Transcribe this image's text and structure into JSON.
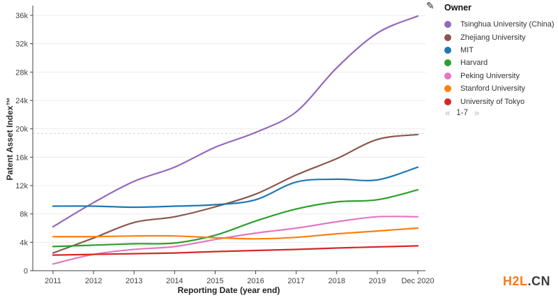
{
  "chart_data": {
    "type": "line",
    "title": "",
    "xlabel": "Reporting Date (year end)",
    "ylabel": "Patent Asset Index™",
    "categories": [
      "2011",
      "2012",
      "2013",
      "2014",
      "2015",
      "2016",
      "2017",
      "2018",
      "2019",
      "Dec 2020"
    ],
    "y_ticks": [
      {
        "value": 0,
        "label": "0"
      },
      {
        "value": 4000,
        "label": "4k"
      },
      {
        "value": 8000,
        "label": "8k"
      },
      {
        "value": 12000,
        "label": "12k"
      },
      {
        "value": 16000,
        "label": "16k"
      },
      {
        "value": 20000,
        "label": "20k"
      },
      {
        "value": 24000,
        "label": "24k"
      },
      {
        "value": 28000,
        "label": "28k"
      },
      {
        "value": 32000,
        "label": "32k"
      },
      {
        "value": 36000,
        "label": "36k"
      }
    ],
    "ylim": [
      0,
      36000
    ],
    "grid": "horizontal",
    "legend_position": "right",
    "reference_line": {
      "value": 19350,
      "style": "dashed"
    },
    "series": [
      {
        "name": "Tsinghua University (China)",
        "color": "#9467bd",
        "values": [
          6200,
          9600,
          12600,
          14600,
          17400,
          19500,
          22400,
          28600,
          33500,
          35900
        ]
      },
      {
        "name": "Zhejiang University",
        "color": "#8c564b",
        "values": [
          2500,
          4600,
          6800,
          7600,
          9000,
          10800,
          13500,
          15800,
          18500,
          19200
        ]
      },
      {
        "name": "MIT",
        "color": "#1f77b4",
        "values": [
          9100,
          9100,
          8950,
          9100,
          9300,
          10000,
          12500,
          12900,
          12800,
          14600
        ]
      },
      {
        "name": "Harvard",
        "color": "#2ca02c",
        "values": [
          3400,
          3600,
          3800,
          3900,
          5000,
          7000,
          8700,
          9700,
          10000,
          11400
        ]
      },
      {
        "name": "Peking University",
        "color": "#e377c2",
        "values": [
          950,
          2300,
          3000,
          3400,
          4400,
          5300,
          6000,
          6900,
          7600,
          7600
        ]
      },
      {
        "name": "Stanford University",
        "color": "#ff7f0e",
        "values": [
          4800,
          4800,
          4900,
          4900,
          4650,
          4500,
          4700,
          5200,
          5600,
          6000
        ]
      },
      {
        "name": "University of Tokyo",
        "color": "#d62728",
        "values": [
          2200,
          2300,
          2400,
          2500,
          2700,
          2850,
          3000,
          3200,
          3350,
          3500
        ]
      }
    ]
  },
  "legend": {
    "title": "Owner",
    "pagination": {
      "prev": "«",
      "range": "1-7",
      "next": "»"
    }
  },
  "icons": {
    "edit_glyph": "✎"
  },
  "watermark": {
    "primary": "H2L",
    "secondary": ".CN",
    "primary_color": "#f47b20",
    "secondary_color": "#3c3c3c"
  },
  "style": {
    "grid_color": "#ececec",
    "axis_color": "#424242",
    "ref_line_color": "#d2d2d2"
  }
}
